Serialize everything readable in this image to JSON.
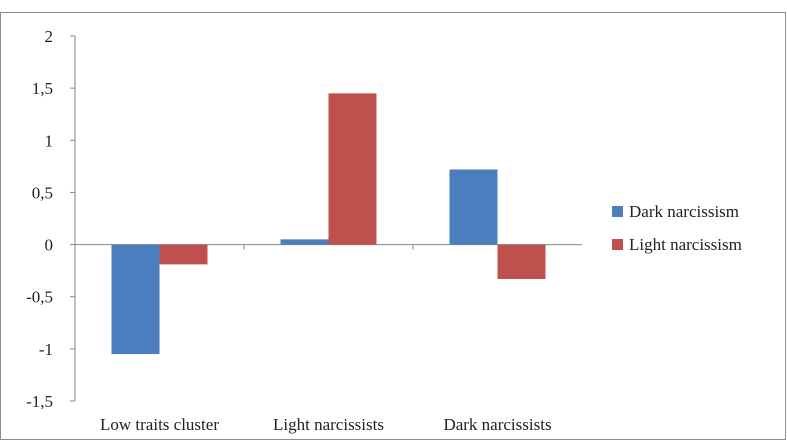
{
  "chart_data": {
    "type": "bar",
    "categories": [
      "Low traits cluster",
      "Light narcissists",
      "Dark narcissists"
    ],
    "series": [
      {
        "name": "Dark narcissism",
        "values": [
          -1.05,
          0.05,
          0.72
        ]
      },
      {
        "name": "Light narcissism",
        "values": [
          -0.19,
          1.45,
          -0.33
        ]
      }
    ],
    "ylim": [
      -1.5,
      2
    ],
    "yticks": [
      2,
      1.5,
      1,
      0.5,
      0,
      -0.5,
      -1,
      -1.5
    ],
    "ytick_labels": [
      "2",
      "1,5",
      "1",
      "0,5",
      "0",
      "-0,5",
      "-1",
      "-1,5"
    ],
    "grid": false,
    "legend_position": "right",
    "colors": {
      "Dark narcissism": "#4a7ebf",
      "Light narcissism": "#c0504d"
    },
    "title": "",
    "xlabel": "",
    "ylabel": ""
  }
}
